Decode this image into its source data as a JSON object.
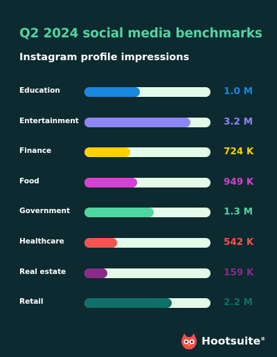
{
  "header": {
    "title": "Q2 2024 social media benchmarks",
    "subtitle": "Instagram profile impressions"
  },
  "brand": {
    "name": "Hootsuite",
    "mark": "®",
    "logo_icon": "owl-icon",
    "logo_color": "#ff4c46"
  },
  "colors": {
    "background": "#0c2a30",
    "track": "#e3fbe7",
    "title": "#4fd6a0"
  },
  "chart_data": {
    "type": "bar",
    "orientation": "horizontal",
    "title": "Q2 2024 social media benchmarks",
    "subtitle": "Instagram profile impressions",
    "xlabel": "",
    "ylabel": "",
    "grid": false,
    "categories": [
      "Education",
      "Entertainment",
      "Finance",
      "Food",
      "Government",
      "Healthcare",
      "Real estate",
      "Retail"
    ],
    "values": [
      1000000,
      3200000,
      724000,
      949000,
      1300000,
      542000,
      159000,
      2200000
    ],
    "value_labels": [
      "1.0 M",
      "3.2 M",
      "724 K",
      "949 K",
      "1.3 M",
      "542 K",
      "159 K",
      "2.2 M"
    ],
    "bar_fill_fraction": [
      0.44,
      0.84,
      0.36,
      0.42,
      0.55,
      0.26,
      0.18,
      0.69
    ],
    "colors": [
      "#1a87e0",
      "#8f86f6",
      "#fdd001",
      "#d93fd0",
      "#4fd6a0",
      "#f5534d",
      "#892a8c",
      "#0f706a"
    ]
  }
}
